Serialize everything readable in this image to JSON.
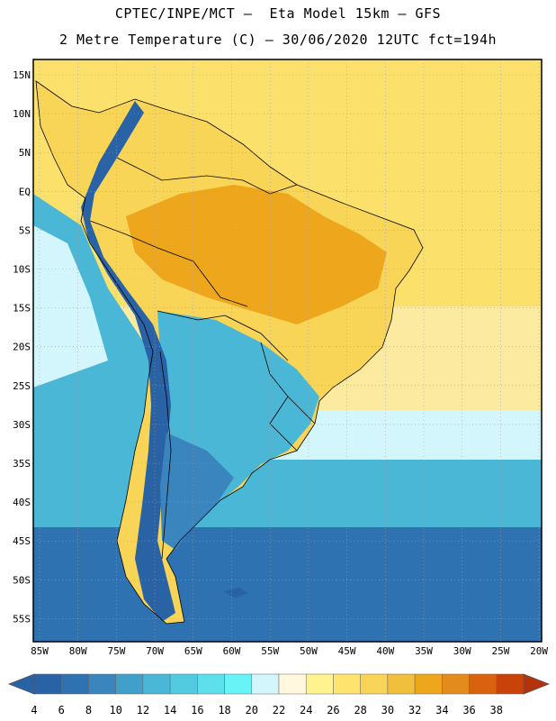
{
  "header": {
    "line1": "CPTEC/INPE/MCT –  Eta Model 15km – GFS",
    "line2": "2 Metre Temperature (C) – 30/06/2020 12UTC fct=194h"
  },
  "map": {
    "region": "South America",
    "lat_ticks": [
      "15N",
      "10N",
      "5N",
      "EQ",
      "5S",
      "10S",
      "15S",
      "20S",
      "25S",
      "30S",
      "35S",
      "40S",
      "45S",
      "50S",
      "55S"
    ],
    "lon_ticks": [
      "85W",
      "80W",
      "75W",
      "70W",
      "65W",
      "60W",
      "55W",
      "50W",
      "45W",
      "40W",
      "35W",
      "30W",
      "25W",
      "20W"
    ]
  },
  "colorbar": {
    "labels": [
      "4",
      "6",
      "8",
      "10",
      "12",
      "14",
      "16",
      "18",
      "20",
      "22",
      "24",
      "26",
      "28",
      "30",
      "32",
      "34",
      "36",
      "38"
    ],
    "colors": [
      "#2a62a6",
      "#2f72b2",
      "#3a85bd",
      "#41a0c9",
      "#4ab7d6",
      "#52cbe0",
      "#5ee0ec",
      "#68f4f6",
      "#d2f6fb",
      "#fff8df",
      "#fff38f",
      "#fee46e",
      "#f8d457",
      "#f0bf3c",
      "#eea71c",
      "#e38b1c",
      "#d8620e",
      "#c84209"
    ],
    "under_color": "#2a62a6",
    "over_color": "#b4320a"
  },
  "colors": {
    "ocean_warm": "#fbe16c",
    "ocean_tropical": "#fbeaa0",
    "ocean_mild": "#d2f6fb",
    "ocean_cool": "#4ab7d6",
    "ocean_cold": "#2f72b2",
    "land_hot": "#eea71c",
    "land_warm": "#f8d457",
    "andes": "#2a62a6",
    "patagonia": "#3a85bd"
  }
}
